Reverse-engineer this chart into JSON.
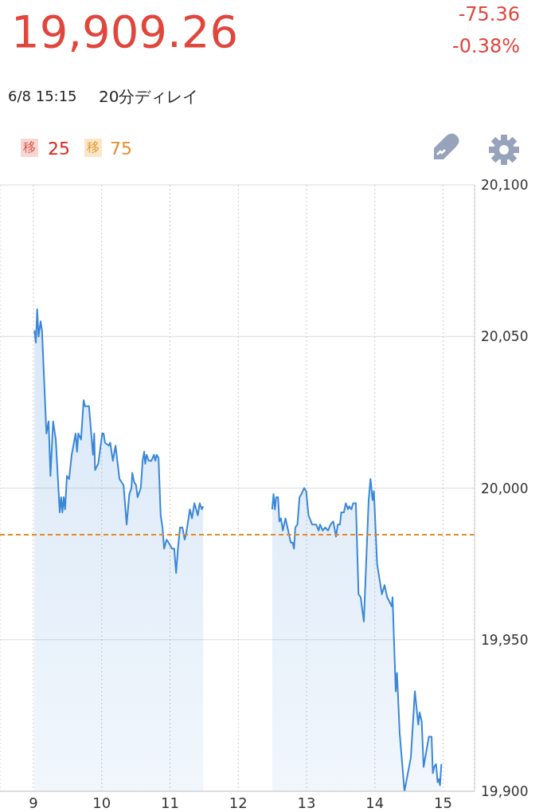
{
  "chart_data": {
    "type": "area",
    "title": "19,909.26",
    "annotations": [
      "-75.36",
      "-0.38%",
      "6/8 15:15",
      "20分ディレイ",
      "移",
      "25",
      "移",
      "75"
    ],
    "series": [
      {
        "color": "#3a87d8",
        "x": [
          9.015,
          9.035,
          9.055,
          9.074,
          9.105,
          9.125,
          9.19,
          9.222,
          9.249,
          9.288,
          9.327,
          9.385,
          9.405,
          9.424,
          9.443,
          9.463,
          9.49,
          9.522,
          9.56,
          9.618,
          9.638,
          9.657,
          9.697,
          9.735,
          9.755,
          9.813,
          9.872,
          9.89,
          9.902,
          9.949,
          10.007,
          10.027,
          10.047,
          10.105,
          10.124,
          10.163,
          10.202,
          10.26,
          10.319,
          10.365,
          10.404,
          10.435,
          10.447,
          10.474,
          10.502,
          10.525,
          10.572,
          10.599,
          10.622,
          10.637,
          10.657,
          10.688,
          10.727,
          10.765,
          10.785,
          10.805,
          10.832,
          10.863,
          10.89,
          10.914,
          10.949,
          10.98,
          11.03,
          11.062,
          11.089,
          11.116,
          11.147,
          11.182,
          11.214,
          11.237,
          11.264,
          11.291,
          11.322,
          11.357,
          11.407,
          11.435,
          11.466,
          11.485,
          12,
          12.497,
          12.516,
          12.536,
          12.555,
          12.582,
          12.602,
          12.625,
          12.652,
          12.691,
          12.73,
          12.769,
          12.796,
          12.816,
          12.835,
          12.866,
          12.897,
          12.924,
          12.964,
          12.994,
          13.029,
          13.081,
          13.139,
          13.177,
          13.197,
          13.236,
          13.274,
          13.314,
          13.352,
          13.391,
          13.431,
          13.457,
          13.489,
          13.508,
          13.547,
          13.574,
          13.606,
          13.624,
          13.656,
          13.683,
          13.722,
          13.761,
          13.792,
          13.839,
          13.909,
          13.936,
          13.967,
          13.986,
          14.033,
          14.103,
          14.142,
          14.181,
          14.247,
          14.259,
          14.306,
          14.324,
          14.364,
          14.434,
          14.492,
          14.527,
          14.586,
          14.636,
          14.656,
          14.686,
          14.714,
          14.791,
          14.831,
          14.849,
          14.869,
          14.896,
          14.919,
          14.939,
          14.954,
          14.974
        ],
        "values": [
          20052,
          20048,
          20059,
          20050,
          20055,
          20052,
          20018,
          20022,
          20004,
          20022,
          20016,
          19992,
          19997,
          19992,
          19997,
          19993,
          20004,
          20003,
          20011,
          20018,
          20012,
          20018,
          20016,
          20029,
          20027,
          20027,
          20011,
          20018,
          20006,
          20008,
          20018,
          20018,
          20015,
          20014,
          20015,
          20009,
          20014,
          20003,
          20001,
          19988,
          19998,
          20000,
          20005,
          20002,
          20001,
          19997,
          20000,
          20009,
          20012,
          20008,
          20011,
          20009,
          20009,
          20011,
          20009,
          20011,
          20010,
          19991,
          19987,
          19980,
          19983,
          19982,
          19980,
          19980,
          19972,
          19980,
          19987,
          19987,
          19983,
          19985,
          19989,
          19993,
          19990,
          19995,
          19991,
          19995,
          19993,
          19994,
          null,
          19993,
          19998,
          19993,
          19997,
          19997,
          19989,
          19990,
          19986,
          19990,
          19986,
          19982,
          19982,
          19980,
          19987,
          19988,
          19997,
          19998,
          20000,
          19999,
          19991,
          19988,
          19988,
          19986,
          19988,
          19986,
          19987,
          19986,
          19988,
          19989,
          19984,
          19988,
          19988,
          19992,
          19992,
          19995,
          19993,
          19994,
          19993,
          19995,
          19995,
          19965,
          19964,
          19956,
          19996,
          20003,
          19996,
          19999,
          19975,
          19965,
          19968,
          19964,
          19961,
          19964,
          19933,
          19939,
          19919,
          19900,
          19907,
          19911,
          19933,
          19922,
          19926,
          19923,
          19908,
          19918,
          19918,
          19906,
          19908,
          19909,
          19903,
          19904,
          19902,
          19909
        ]
      }
    ],
    "xlim": [
      8.51,
      15.46
    ],
    "xticks": [
      9,
      10,
      11,
      12,
      13,
      14,
      15
    ],
    "ylim": [
      19900,
      20100
    ],
    "yticks": [
      {
        "value": 19900,
        "label": "19,900"
      },
      {
        "value": 19950,
        "label": "19,950"
      },
      {
        "value": 20000,
        "label": "20,000"
      },
      {
        "value": 20050,
        "label": "20,050"
      },
      {
        "value": 20100,
        "label": "20,100"
      }
    ],
    "ref_lines": [
      {
        "axis": "y",
        "value": 19984.62,
        "color": "#e08a2c",
        "line_style": "dashed"
      }
    ],
    "grid": true
  }
}
